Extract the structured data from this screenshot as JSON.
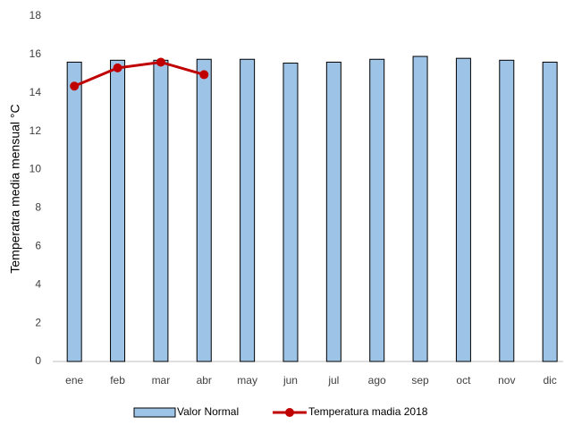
{
  "chart_data": {
    "type": "bar",
    "y_label": "Temperatra media mensual °C",
    "categories": [
      "ene",
      "feb",
      "mar",
      "abr",
      "may",
      "jun",
      "jul",
      "ago",
      "sep",
      "oct",
      "nov",
      "dic"
    ],
    "series": [
      {
        "name": "Valor Normal",
        "type": "bar",
        "color": "#9dc3e6",
        "values": [
          15.6,
          15.7,
          15.7,
          15.75,
          15.75,
          15.55,
          15.6,
          15.75,
          15.9,
          15.8,
          15.7,
          15.6
        ]
      },
      {
        "name": "Temperatura madia 2018",
        "type": "line",
        "color": "#c00000",
        "values": [
          14.35,
          15.3,
          15.6,
          14.95,
          null,
          null,
          null,
          null,
          null,
          null,
          null,
          null
        ]
      }
    ],
    "ylim": [
      0,
      18
    ],
    "yticks": [
      0,
      2,
      4,
      6,
      8,
      10,
      12,
      14,
      16,
      18
    ],
    "grid": false,
    "legend": "bottom"
  }
}
